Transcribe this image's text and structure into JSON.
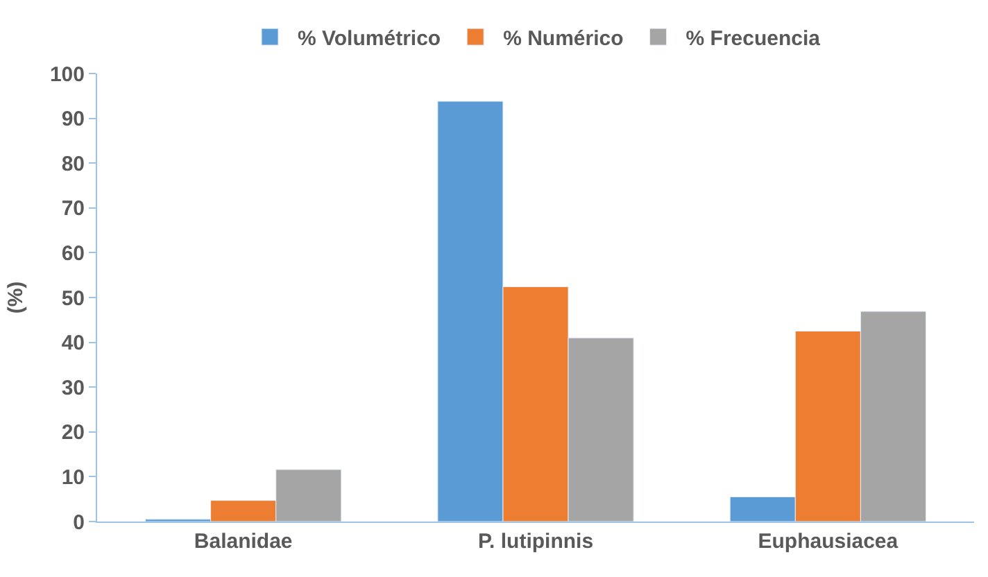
{
  "chart_data": {
    "type": "bar",
    "ylabel": "(%)",
    "categories": [
      "Balanidae",
      "P. lutipinnis",
      "Euphausiacea"
    ],
    "series": [
      {
        "name": "% Volumétrico",
        "color": "#5b9bd5",
        "values": [
          0.5,
          93.8,
          5.5
        ]
      },
      {
        "name": "% Numérico",
        "color": "#ed7d31",
        "values": [
          4.7,
          52.4,
          42.5
        ]
      },
      {
        "name": "% Frecuencia",
        "color": "#a5a5a5",
        "values": [
          11.6,
          41.0,
          46.9
        ]
      }
    ],
    "ylim": [
      0,
      100
    ],
    "yticks": [
      0,
      10,
      20,
      30,
      40,
      50,
      60,
      70,
      80,
      90,
      100
    ],
    "legend": "top"
  }
}
